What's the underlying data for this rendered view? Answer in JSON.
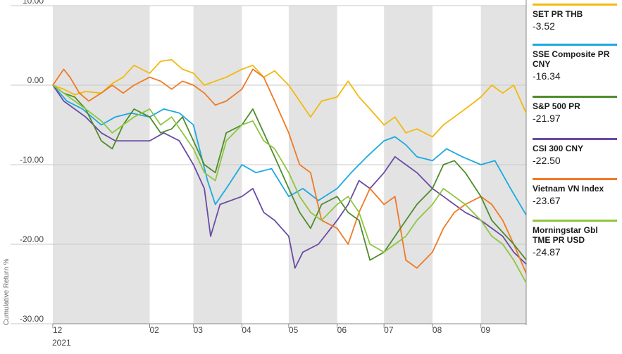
{
  "chart_data": {
    "type": "line",
    "ylabel": "Cumulative Return %",
    "ylim": [
      -30,
      10
    ],
    "yticks": [
      10,
      0,
      -10,
      -20,
      -30
    ],
    "ytick_labels": [
      "10.00",
      "0.00",
      "-10.00",
      "-20.00",
      "-30.00"
    ],
    "x_range": [
      "2020-12-01",
      "2021-09-30"
    ],
    "xtick_labels": [
      "12",
      "02",
      "03",
      "04",
      "05",
      "06",
      "07",
      "08",
      "09"
    ],
    "xtick_dates": [
      "2020-12-01",
      "2021-02-01",
      "2021-03-01",
      "2021-04-01",
      "2021-05-01",
      "2021-06-01",
      "2021-07-01",
      "2021-08-01",
      "2021-09-01"
    ],
    "year_label": "2021",
    "grid": true,
    "legend_position": "right",
    "series": [
      {
        "name": "SET PR THB",
        "final_label": "-3.52",
        "color": "#F2B90F",
        "points": [
          [
            "2020-12-01",
            0
          ],
          [
            "2020-12-08",
            -0.5
          ],
          [
            "2020-12-15",
            -1.2
          ],
          [
            "2020-12-22",
            -0.8
          ],
          [
            "2021-01-01",
            -1
          ],
          [
            "2021-01-08",
            0.2
          ],
          [
            "2021-01-15",
            1
          ],
          [
            "2021-01-22",
            2.5
          ],
          [
            "2021-02-01",
            1.5
          ],
          [
            "2021-02-08",
            3
          ],
          [
            "2021-02-15",
            3.2
          ],
          [
            "2021-02-22",
            2
          ],
          [
            "2021-03-01",
            1.5
          ],
          [
            "2021-03-08",
            0
          ],
          [
            "2021-03-15",
            0.5
          ],
          [
            "2021-03-22",
            1
          ],
          [
            "2021-04-01",
            2
          ],
          [
            "2021-04-08",
            2.5
          ],
          [
            "2021-04-15",
            1
          ],
          [
            "2021-04-22",
            1.8
          ],
          [
            "2021-05-01",
            0
          ],
          [
            "2021-05-08",
            -2
          ],
          [
            "2021-05-15",
            -4
          ],
          [
            "2021-05-22",
            -2
          ],
          [
            "2021-06-01",
            -1.5
          ],
          [
            "2021-06-08",
            0.5
          ],
          [
            "2021-06-15",
            -1.5
          ],
          [
            "2021-06-22",
            -3
          ],
          [
            "2021-07-01",
            -5
          ],
          [
            "2021-07-08",
            -4
          ],
          [
            "2021-07-15",
            -6
          ],
          [
            "2021-07-22",
            -5.5
          ],
          [
            "2021-08-01",
            -6.5
          ],
          [
            "2021-08-08",
            -5
          ],
          [
            "2021-08-15",
            -4
          ],
          [
            "2021-08-22",
            -3
          ],
          [
            "2021-09-01",
            -1.5
          ],
          [
            "2021-09-08",
            0
          ],
          [
            "2021-09-15",
            -1
          ],
          [
            "2021-09-22",
            0
          ],
          [
            "2021-09-30",
            -3.52
          ]
        ]
      },
      {
        "name": "SSE Composite PR CNY",
        "final_label": "-16.34",
        "color": "#1BA9E1",
        "points": [
          [
            "2020-12-01",
            0
          ],
          [
            "2020-12-10",
            -2
          ],
          [
            "2020-12-20",
            -3
          ],
          [
            "2021-01-01",
            -5
          ],
          [
            "2021-01-10",
            -4
          ],
          [
            "2021-01-20",
            -3.5
          ],
          [
            "2021-02-01",
            -4
          ],
          [
            "2021-02-10",
            -3
          ],
          [
            "2021-02-20",
            -3.5
          ],
          [
            "2021-03-01",
            -5
          ],
          [
            "2021-03-10",
            -12
          ],
          [
            "2021-03-15",
            -15
          ],
          [
            "2021-03-22",
            -13
          ],
          [
            "2021-04-01",
            -10
          ],
          [
            "2021-04-10",
            -11
          ],
          [
            "2021-04-20",
            -10.5
          ],
          [
            "2021-05-01",
            -14
          ],
          [
            "2021-05-10",
            -13
          ],
          [
            "2021-05-20",
            -14.5
          ],
          [
            "2021-06-01",
            -13
          ],
          [
            "2021-06-10",
            -11
          ],
          [
            "2021-06-20",
            -9
          ],
          [
            "2021-07-01",
            -7
          ],
          [
            "2021-07-08",
            -6.5
          ],
          [
            "2021-07-15",
            -7.5
          ],
          [
            "2021-07-22",
            -9
          ],
          [
            "2021-08-01",
            -9.5
          ],
          [
            "2021-08-10",
            -8
          ],
          [
            "2021-08-20",
            -9
          ],
          [
            "2021-09-01",
            -10
          ],
          [
            "2021-09-10",
            -9.5
          ],
          [
            "2021-09-20",
            -13
          ],
          [
            "2021-09-30",
            -16.34
          ]
        ]
      },
      {
        "name": "S&P 500 PR",
        "final_label": "-21.97",
        "color": "#4E8C2B",
        "points": [
          [
            "2020-12-01",
            0
          ],
          [
            "2020-12-08",
            -1
          ],
          [
            "2020-12-15",
            -1.5
          ],
          [
            "2020-12-22",
            -3
          ],
          [
            "2021-01-01",
            -7
          ],
          [
            "2021-01-08",
            -8
          ],
          [
            "2021-01-15",
            -5
          ],
          [
            "2021-01-22",
            -3
          ],
          [
            "2021-02-01",
            -4
          ],
          [
            "2021-02-08",
            -6
          ],
          [
            "2021-02-15",
            -5.5
          ],
          [
            "2021-02-22",
            -4
          ],
          [
            "2021-03-01",
            -7
          ],
          [
            "2021-03-08",
            -10
          ],
          [
            "2021-03-15",
            -11
          ],
          [
            "2021-03-22",
            -6
          ],
          [
            "2021-04-01",
            -5
          ],
          [
            "2021-04-08",
            -3
          ],
          [
            "2021-04-15",
            -6
          ],
          [
            "2021-04-22",
            -9
          ],
          [
            "2021-05-01",
            -13
          ],
          [
            "2021-05-08",
            -16
          ],
          [
            "2021-05-15",
            -18
          ],
          [
            "2021-05-22",
            -15
          ],
          [
            "2021-06-01",
            -14
          ],
          [
            "2021-06-08",
            -16
          ],
          [
            "2021-06-15",
            -17
          ],
          [
            "2021-06-22",
            -22
          ],
          [
            "2021-07-01",
            -21
          ],
          [
            "2021-07-08",
            -19
          ],
          [
            "2021-07-15",
            -17
          ],
          [
            "2021-07-22",
            -15
          ],
          [
            "2021-08-01",
            -13
          ],
          [
            "2021-08-08",
            -10
          ],
          [
            "2021-08-15",
            -9.5
          ],
          [
            "2021-08-22",
            -11
          ],
          [
            "2021-09-01",
            -14
          ],
          [
            "2021-09-08",
            -17
          ],
          [
            "2021-09-15",
            -18.5
          ],
          [
            "2021-09-22",
            -20
          ],
          [
            "2021-09-30",
            -21.97
          ]
        ]
      },
      {
        "name": "CSI 300 CNY",
        "final_label": "-22.50",
        "color": "#6A4BA3",
        "points": [
          [
            "2020-12-01",
            0
          ],
          [
            "2020-12-08",
            -2
          ],
          [
            "2020-12-15",
            -3
          ],
          [
            "2020-12-22",
            -4
          ],
          [
            "2021-01-01",
            -6
          ],
          [
            "2021-01-10",
            -7
          ],
          [
            "2021-01-20",
            -7
          ],
          [
            "2021-02-01",
            -7
          ],
          [
            "2021-02-10",
            -6
          ],
          [
            "2021-02-20",
            -7
          ],
          [
            "2021-03-01",
            -10
          ],
          [
            "2021-03-08",
            -13
          ],
          [
            "2021-03-12",
            -19
          ],
          [
            "2021-03-18",
            -15
          ],
          [
            "2021-04-01",
            -14
          ],
          [
            "2021-04-08",
            -13
          ],
          [
            "2021-04-15",
            -16
          ],
          [
            "2021-04-22",
            -17
          ],
          [
            "2021-05-01",
            -19
          ],
          [
            "2021-05-05",
            -23
          ],
          [
            "2021-05-10",
            -21
          ],
          [
            "2021-05-20",
            -20
          ],
          [
            "2021-06-01",
            -17
          ],
          [
            "2021-06-08",
            -15
          ],
          [
            "2021-06-15",
            -12
          ],
          [
            "2021-06-22",
            -13
          ],
          [
            "2021-07-01",
            -11
          ],
          [
            "2021-07-08",
            -9
          ],
          [
            "2021-07-15",
            -10
          ],
          [
            "2021-07-22",
            -11
          ],
          [
            "2021-08-01",
            -13
          ],
          [
            "2021-08-08",
            -14
          ],
          [
            "2021-08-15",
            -15
          ],
          [
            "2021-08-22",
            -16
          ],
          [
            "2021-09-01",
            -17
          ],
          [
            "2021-09-08",
            -18
          ],
          [
            "2021-09-15",
            -19
          ],
          [
            "2021-09-22",
            -21
          ],
          [
            "2021-09-30",
            -22.5
          ]
        ]
      },
      {
        "name": "Vietnam VN Index",
        "final_label": "-23.67",
        "color": "#EF7A24",
        "points": [
          [
            "2020-12-01",
            0
          ],
          [
            "2020-12-08",
            2
          ],
          [
            "2020-12-12",
            1
          ],
          [
            "2020-12-18",
            -1
          ],
          [
            "2020-12-24",
            -2
          ],
          [
            "2021-01-01",
            -1
          ],
          [
            "2021-01-08",
            0
          ],
          [
            "2021-01-15",
            -1
          ],
          [
            "2021-01-22",
            0
          ],
          [
            "2021-02-01",
            1
          ],
          [
            "2021-02-08",
            0.5
          ],
          [
            "2021-02-15",
            -0.5
          ],
          [
            "2021-02-22",
            0.5
          ],
          [
            "2021-03-01",
            0
          ],
          [
            "2021-03-08",
            -1
          ],
          [
            "2021-03-15",
            -2.5
          ],
          [
            "2021-03-22",
            -2
          ],
          [
            "2021-04-01",
            -0.5
          ],
          [
            "2021-04-08",
            2
          ],
          [
            "2021-04-15",
            1
          ],
          [
            "2021-04-22",
            -2
          ],
          [
            "2021-05-01",
            -6
          ],
          [
            "2021-05-08",
            -10
          ],
          [
            "2021-05-15",
            -11
          ],
          [
            "2021-05-22",
            -17
          ],
          [
            "2021-06-01",
            -18
          ],
          [
            "2021-06-08",
            -20
          ],
          [
            "2021-06-15",
            -16
          ],
          [
            "2021-06-22",
            -13
          ],
          [
            "2021-07-01",
            -15
          ],
          [
            "2021-07-08",
            -14
          ],
          [
            "2021-07-15",
            -22
          ],
          [
            "2021-07-22",
            -23
          ],
          [
            "2021-08-01",
            -21
          ],
          [
            "2021-08-08",
            -18
          ],
          [
            "2021-08-15",
            -16
          ],
          [
            "2021-08-22",
            -15
          ],
          [
            "2021-09-01",
            -14
          ],
          [
            "2021-09-08",
            -15
          ],
          [
            "2021-09-15",
            -17
          ],
          [
            "2021-09-22",
            -20
          ],
          [
            "2021-09-30",
            -23.67
          ]
        ]
      },
      {
        "name": "Morningstar Gbl TME PR USD",
        "final_label": "-24.87",
        "color": "#8DC63F",
        "points": [
          [
            "2020-12-01",
            0
          ],
          [
            "2020-12-08",
            -1
          ],
          [
            "2020-12-15",
            -2
          ],
          [
            "2020-12-22",
            -3
          ],
          [
            "2021-01-01",
            -4.5
          ],
          [
            "2021-01-08",
            -6
          ],
          [
            "2021-01-15",
            -5
          ],
          [
            "2021-01-22",
            -4
          ],
          [
            "2021-02-01",
            -3
          ],
          [
            "2021-02-08",
            -5
          ],
          [
            "2021-02-15",
            -4
          ],
          [
            "2021-02-22",
            -6
          ],
          [
            "2021-03-01",
            -8
          ],
          [
            "2021-03-08",
            -11
          ],
          [
            "2021-03-15",
            -12
          ],
          [
            "2021-03-22",
            -7
          ],
          [
            "2021-04-01",
            -5
          ],
          [
            "2021-04-08",
            -4.5
          ],
          [
            "2021-04-15",
            -7
          ],
          [
            "2021-04-22",
            -8
          ],
          [
            "2021-05-01",
            -11
          ],
          [
            "2021-05-08",
            -14
          ],
          [
            "2021-05-15",
            -16
          ],
          [
            "2021-05-22",
            -17
          ],
          [
            "2021-06-01",
            -15
          ],
          [
            "2021-06-08",
            -14
          ],
          [
            "2021-06-15",
            -16
          ],
          [
            "2021-06-22",
            -20
          ],
          [
            "2021-07-01",
            -21
          ],
          [
            "2021-07-08",
            -20
          ],
          [
            "2021-07-15",
            -19
          ],
          [
            "2021-07-22",
            -17
          ],
          [
            "2021-08-01",
            -15
          ],
          [
            "2021-08-08",
            -13
          ],
          [
            "2021-08-15",
            -14
          ],
          [
            "2021-08-22",
            -15
          ],
          [
            "2021-09-01",
            -17
          ],
          [
            "2021-09-08",
            -19
          ],
          [
            "2021-09-15",
            -20
          ],
          [
            "2021-09-22",
            -22
          ],
          [
            "2021-09-30",
            -24.87
          ]
        ]
      }
    ]
  }
}
